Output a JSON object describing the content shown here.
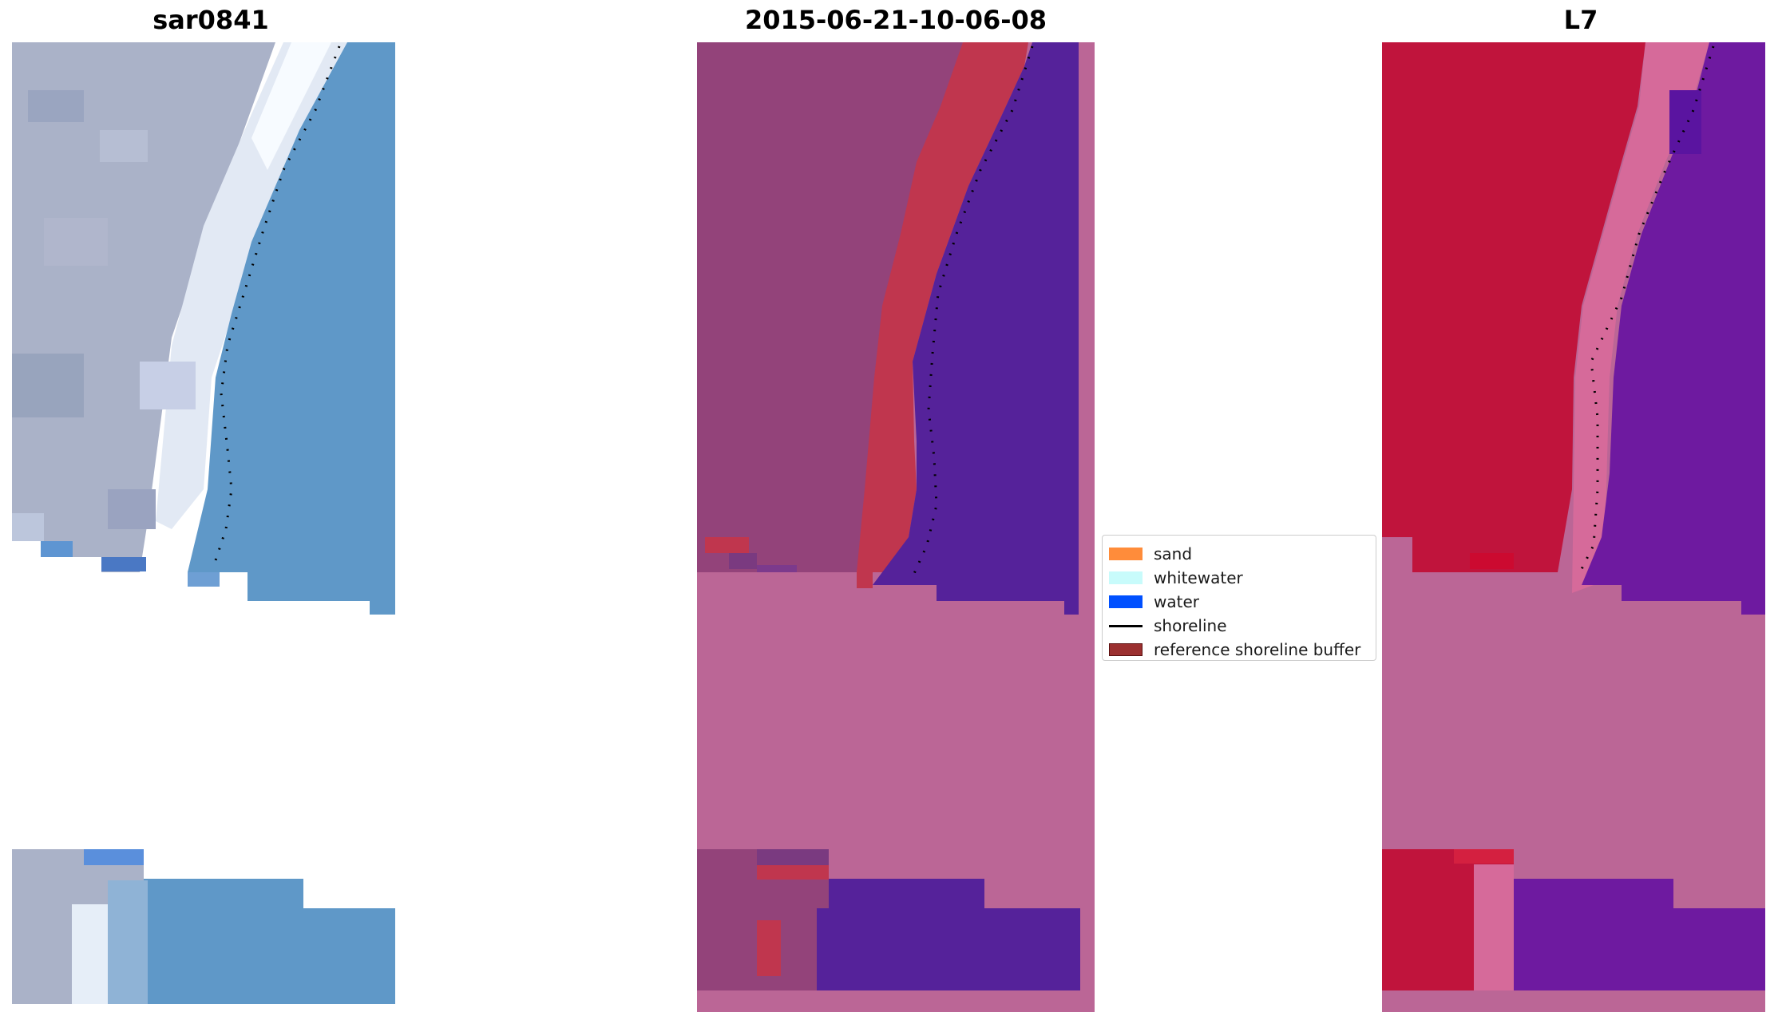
{
  "panels": [
    {
      "title": "sar0841"
    },
    {
      "title": "2015-06-21-10-06-08"
    },
    {
      "title": "L7"
    }
  ],
  "legend": {
    "items": [
      {
        "label": "sand",
        "color": "#ff8c3a",
        "kind": "patch"
      },
      {
        "label": "whitewater",
        "color": "#c8fbfb",
        "kind": "patch"
      },
      {
        "label": "water",
        "color": "#0050ff",
        "kind": "patch"
      },
      {
        "label": "shoreline",
        "color": "#000000",
        "kind": "line"
      },
      {
        "label": "reference shoreline buffer",
        "color": "#9b3030",
        "kind": "patch-outlined"
      }
    ]
  },
  "colors": {
    "rgb_land": "#aab2c8",
    "rgb_water": "#5f98c8",
    "rgb_surf": "#e6eef8",
    "class_land": "#93437a",
    "class_water": "#55229a",
    "class_buffer": "#c0364e",
    "class_nodata": "#bb6696",
    "mndwi_land": "#c0143c",
    "mndwi_water": "#6e1aa0",
    "mndwi_mid": "#d66a9a",
    "nodata_pink": "#bb6696"
  }
}
